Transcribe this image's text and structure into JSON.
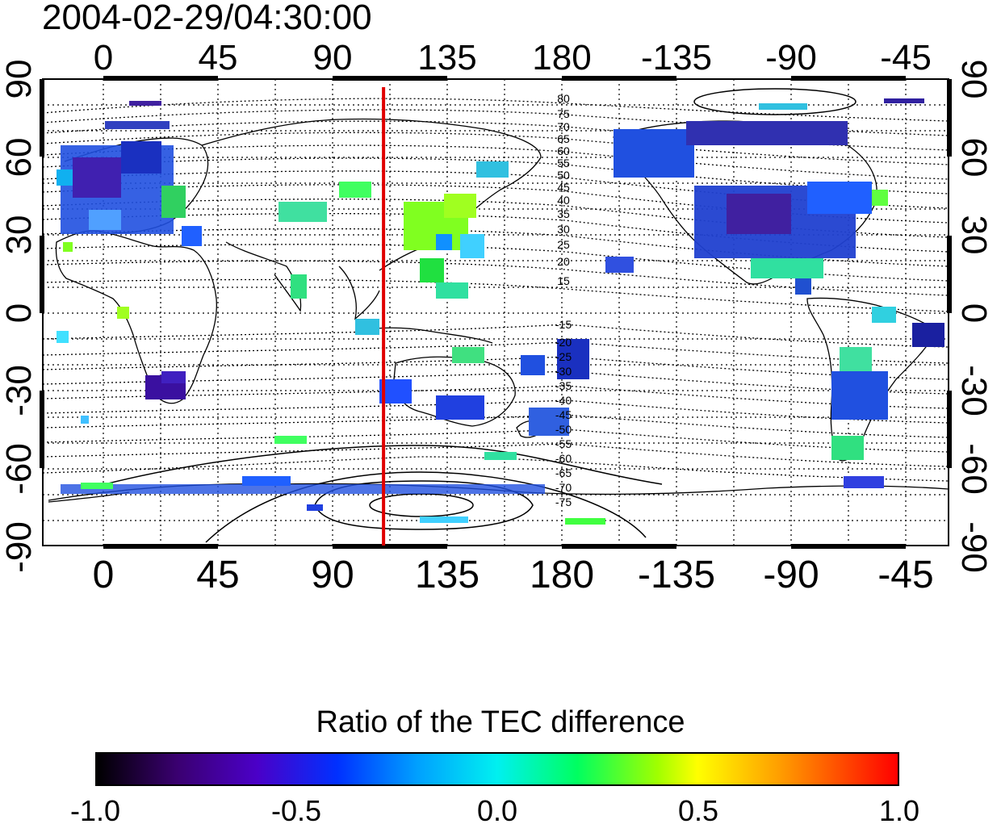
{
  "title": "2004-02-29/04:30:00",
  "map": {
    "top_lon_labels": [
      "0",
      "45",
      "90",
      "135",
      "180",
      "-135",
      "-90",
      "-45"
    ],
    "bottom_lon_labels": [
      "0",
      "45",
      "90",
      "135",
      "180",
      "-135",
      "-90",
      "-45"
    ],
    "left_lat_labels": [
      "90",
      "60",
      "30",
      "0",
      "-30",
      "-60",
      "-90"
    ],
    "right_lat_labels": [
      "90",
      "60",
      "30",
      "0",
      "-30",
      "-60",
      "-90"
    ],
    "contour_labels_north": [
      "80",
      "75",
      "70",
      "65",
      "60",
      "55",
      "50",
      "45",
      "40",
      "35",
      "30",
      "25",
      "20",
      "15"
    ],
    "contour_labels_south": [
      "-15",
      "-20",
      "-25",
      "-30",
      "-35",
      "-40",
      "-45",
      "-50",
      "-55",
      "-60",
      "-65",
      "-70",
      "-75"
    ],
    "meridian_line_longitude": 110,
    "meridian_line_color": "#e00000",
    "colorscale": "rainbow: black-purple-blue-cyan-green-yellow-red"
  },
  "colorbar": {
    "title": "Ratio of the TEC difference",
    "ticks": [
      "-1.0",
      "-0.5",
      "0.0",
      "0.5",
      "1.0"
    ],
    "range": [
      -1.0,
      1.0
    ]
  }
}
